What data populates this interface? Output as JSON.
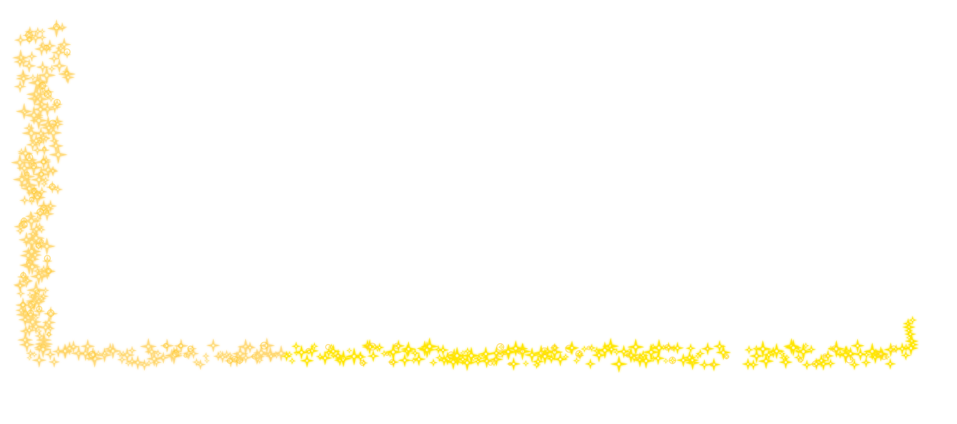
{
  "canvas": {
    "background": "#ffffff"
  },
  "sparkle_trail": {
    "description_icon": "sparkle-star-icon",
    "colors": {
      "core": "#fff8c8",
      "inner": "#ffe600",
      "glow": "#ffcc33",
      "halo": "#ffd56a"
    },
    "segments": [
      {
        "name": "vertical-left",
        "tone": "pale"
      },
      {
        "name": "horizontal-bottom",
        "tone": "bright"
      },
      {
        "name": "end-cap-right",
        "tone": "bright"
      }
    ]
  }
}
